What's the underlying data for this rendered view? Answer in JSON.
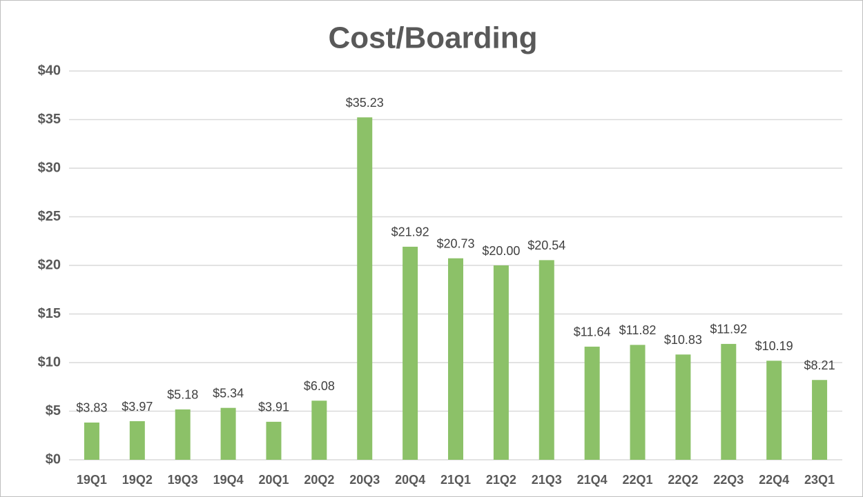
{
  "chart_data": {
    "type": "bar",
    "title": "Cost/Boarding",
    "categories": [
      "19Q1",
      "19Q2",
      "19Q3",
      "19Q4",
      "20Q1",
      "20Q2",
      "20Q3",
      "20Q4",
      "21Q1",
      "21Q2",
      "21Q3",
      "21Q4",
      "22Q1",
      "22Q2",
      "22Q3",
      "22Q4",
      "23Q1"
    ],
    "values": [
      3.83,
      3.97,
      5.18,
      5.34,
      3.91,
      6.08,
      35.23,
      21.92,
      20.73,
      20.0,
      20.54,
      11.64,
      11.82,
      10.83,
      11.92,
      10.19,
      8.21
    ],
    "value_labels": [
      "$3.83",
      "$3.97",
      "$5.18",
      "$5.34",
      "$3.91",
      "$6.08",
      "$35.23",
      "$21.92",
      "$20.73",
      "$20.00",
      "$20.54",
      "$11.64",
      "$11.82",
      "$10.83",
      "$11.92",
      "$10.19",
      "$8.21"
    ],
    "color": "#8cc168",
    "ylim": [
      0,
      40
    ],
    "yticks": [
      {
        "value": 0,
        "label": "$0"
      },
      {
        "value": 5,
        "label": "$5"
      },
      {
        "value": 10,
        "label": "$10"
      },
      {
        "value": 15,
        "label": "$15"
      },
      {
        "value": 20,
        "label": "$20"
      },
      {
        "value": 25,
        "label": "$25"
      },
      {
        "value": 30,
        "label": "$30"
      },
      {
        "value": 35,
        "label": "$35"
      },
      {
        "value": 40,
        "label": "$40"
      }
    ],
    "grid": true
  }
}
